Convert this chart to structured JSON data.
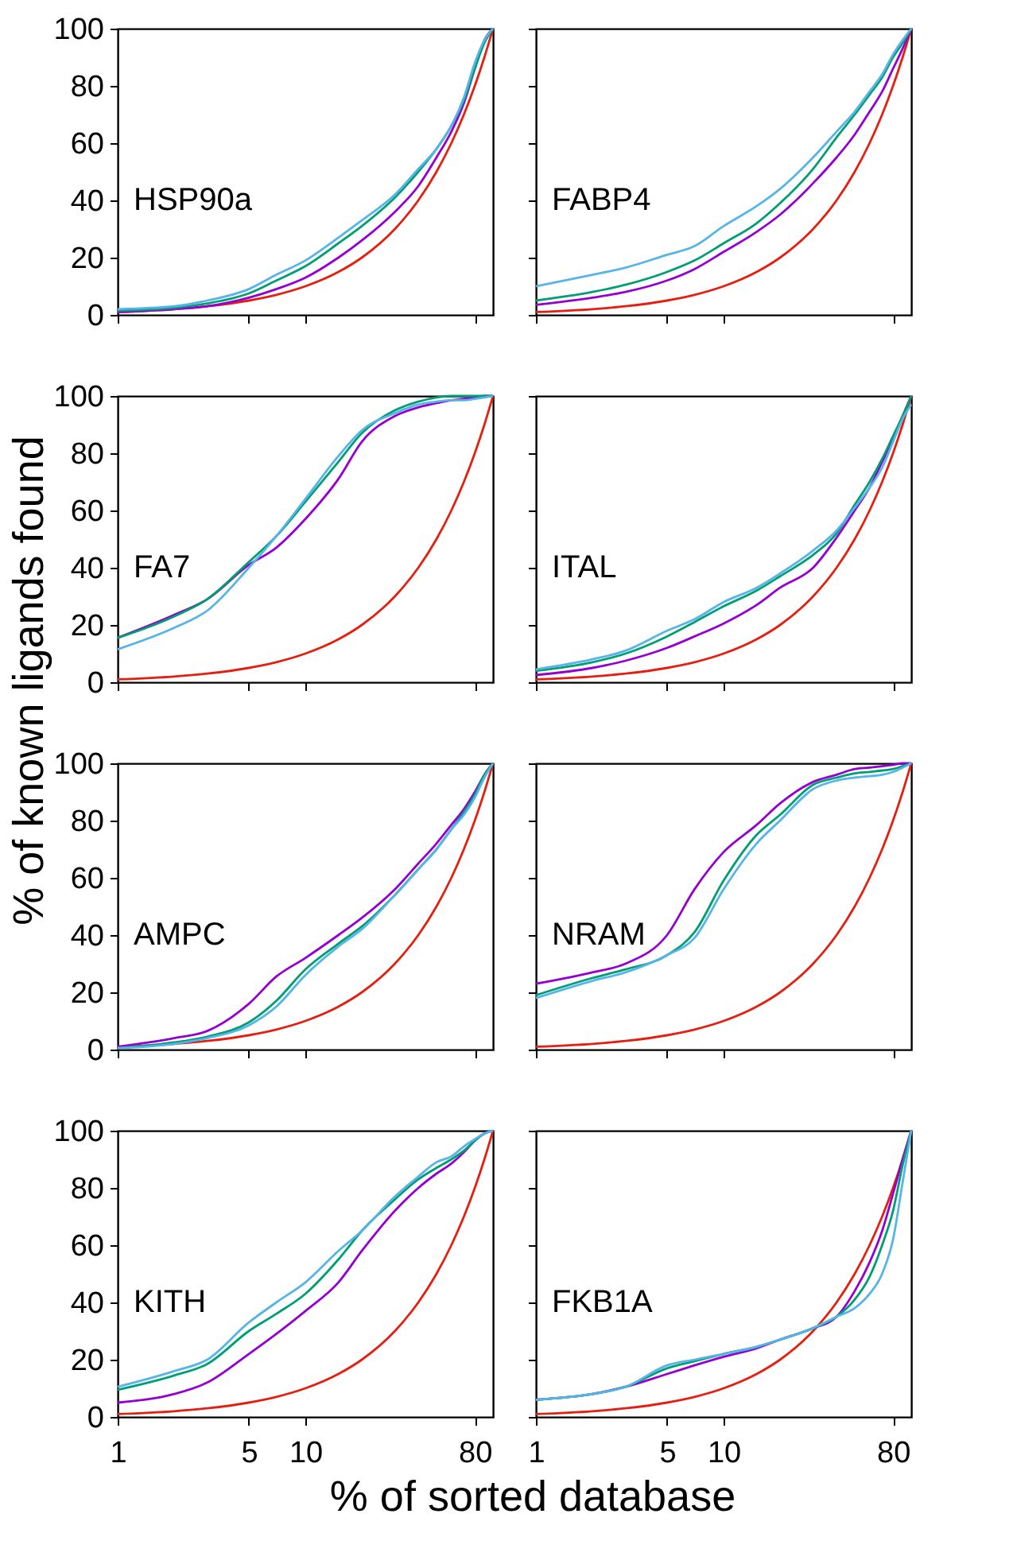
{
  "chart_data": [
    {
      "type": "line",
      "annotations": [
        "HSP90a"
      ],
      "ylabel": "% of known ligands found",
      "log": "x",
      "x": [
        1,
        2,
        3,
        5,
        7,
        10,
        15,
        20,
        30,
        40,
        50,
        60,
        70,
        80,
        90,
        100
      ],
      "xlim": [
        1,
        100
      ],
      "xticks": [
        1,
        5,
        10,
        80
      ],
      "ylim": [
        0,
        100
      ],
      "yticks": [
        0,
        20,
        40,
        60,
        80,
        100
      ],
      "tick_labels": "y",
      "grid": false,
      "series": [
        {
          "color": "#e51e10",
          "values": [
            1,
            2,
            3,
            5,
            7,
            10,
            15,
            20,
            30,
            40,
            50,
            60,
            70,
            80,
            90,
            100
          ]
        },
        {
          "color": "#9400d3",
          "values": [
            1,
            2,
            3,
            6,
            9,
            13,
            20,
            26,
            36,
            45,
            55,
            64,
            74,
            86,
            96,
            100
          ]
        },
        {
          "color": "#009e73",
          "values": [
            1.5,
            2.5,
            4,
            7.5,
            12,
            17,
            25,
            31,
            41,
            50,
            58,
            66,
            75,
            86,
            95,
            100
          ]
        },
        {
          "color": "#56b4e9",
          "values": [
            2,
            3,
            5,
            9,
            14,
            19,
            27,
            33,
            42,
            51,
            58,
            66,
            76,
            88,
            96,
            100
          ]
        }
      ]
    },
    {
      "type": "line",
      "annotations": [
        "FABP4"
      ],
      "log": "x",
      "x": [
        1,
        2,
        3,
        5,
        7,
        10,
        15,
        20,
        30,
        40,
        50,
        60,
        70,
        80,
        90,
        100
      ],
      "xlim": [
        1,
        100
      ],
      "xticks": [
        1,
        5,
        10,
        80
      ],
      "ylim": [
        0,
        100
      ],
      "yticks": [
        0,
        20,
        40,
        60,
        80,
        100
      ],
      "tick_labels": false,
      "grid": false,
      "series": [
        {
          "color": "#e51e10",
          "values": [
            1,
            2,
            3,
            5,
            7,
            10,
            15,
            20,
            30,
            40,
            50,
            60,
            70,
            80,
            90,
            100
          ]
        },
        {
          "color": "#9400d3",
          "values": [
            3.5,
            6,
            8,
            12,
            16,
            22,
            29,
            35,
            46,
            55,
            63,
            71,
            78,
            86,
            93,
            100
          ]
        },
        {
          "color": "#009e73",
          "values": [
            5,
            8,
            10.5,
            15,
            19,
            25,
            32,
            39,
            51,
            62,
            70,
            77,
            83,
            90,
            95,
            100
          ]
        },
        {
          "color": "#56b4e9",
          "values": [
            10,
            14,
            16.5,
            21,
            24,
            31,
            38,
            44,
            55,
            64,
            71,
            78,
            84,
            91,
            96,
            100
          ]
        }
      ]
    },
    {
      "type": "line",
      "annotations": [
        "FA7"
      ],
      "log": "x",
      "x": [
        1,
        2,
        3,
        5,
        7,
        10,
        15,
        20,
        30,
        40,
        50,
        60,
        70,
        80,
        90,
        100
      ],
      "xlim": [
        1,
        100
      ],
      "xticks": [
        1,
        5,
        10,
        80
      ],
      "ylim": [
        0,
        100
      ],
      "yticks": [
        0,
        20,
        40,
        60,
        80,
        100
      ],
      "tick_labels": "y",
      "grid": false,
      "series": [
        {
          "color": "#e51e10",
          "values": [
            1,
            2,
            3,
            5,
            7,
            10,
            15,
            20,
            30,
            40,
            50,
            60,
            70,
            80,
            90,
            100
          ]
        },
        {
          "color": "#9400d3",
          "values": [
            15.5,
            23.5,
            29,
            41,
            47,
            57,
            71,
            84,
            93,
            96,
            97.5,
            98.5,
            99,
            99.5,
            100,
            100
          ]
        },
        {
          "color": "#009e73",
          "values": [
            15.5,
            23,
            29,
            42,
            51,
            63,
            77,
            87,
            95,
            98,
            99.5,
            100,
            100,
            100,
            100,
            100
          ]
        },
        {
          "color": "#56b4e9",
          "values": [
            11.5,
            19,
            25,
            40,
            51,
            64,
            79,
            88,
            94,
            97,
            98,
            98.5,
            98.5,
            99,
            99.5,
            100
          ]
        }
      ]
    },
    {
      "type": "line",
      "annotations": [
        "ITAL"
      ],
      "log": "x",
      "x": [
        1,
        2,
        3,
        5,
        7,
        10,
        15,
        20,
        30,
        40,
        50,
        60,
        70,
        80,
        90,
        100
      ],
      "xlim": [
        1,
        100
      ],
      "xticks": [
        1,
        5,
        10,
        80
      ],
      "ylim": [
        0,
        100
      ],
      "yticks": [
        0,
        20,
        40,
        60,
        80,
        100
      ],
      "tick_labels": false,
      "grid": false,
      "series": [
        {
          "color": "#e51e10",
          "values": [
            1,
            2,
            3,
            5,
            7,
            10,
            15,
            20,
            30,
            40,
            50,
            60,
            70,
            80,
            90,
            100
          ]
        },
        {
          "color": "#9400d3",
          "values": [
            2.5,
            5,
            7.5,
            12,
            16,
            20.5,
            27,
            33,
            40,
            50.5,
            60,
            68,
            77,
            85,
            93,
            100
          ]
        },
        {
          "color": "#009e73",
          "values": [
            4,
            7,
            10,
            16,
            21,
            26.5,
            32,
            37,
            44.5,
            52,
            62,
            70,
            78,
            86,
            93,
            100
          ]
        },
        {
          "color": "#56b4e9",
          "values": [
            4.5,
            8,
            11,
            18,
            22,
            28,
            33,
            38,
            46,
            53,
            61,
            68,
            75,
            84,
            92,
            97
          ]
        }
      ]
    },
    {
      "type": "line",
      "annotations": [
        "AMPC"
      ],
      "log": "x",
      "x": [
        1,
        2,
        3,
        5,
        7,
        10,
        15,
        20,
        30,
        40,
        50,
        60,
        70,
        80,
        90,
        100
      ],
      "xlim": [
        1,
        100
      ],
      "xticks": [
        1,
        5,
        10,
        80
      ],
      "ylim": [
        0,
        100
      ],
      "yticks": [
        0,
        20,
        40,
        60,
        80,
        100
      ],
      "tick_labels": "y",
      "grid": false,
      "series": [
        {
          "color": "#e51e10",
          "values": [
            1,
            2,
            3,
            5,
            7,
            10,
            15,
            20,
            30,
            40,
            50,
            60,
            70,
            80,
            90,
            100
          ]
        },
        {
          "color": "#9400d3",
          "values": [
            1,
            4,
            6.5,
            16,
            25.5,
            32,
            40,
            46,
            56,
            65,
            72,
            78.5,
            84,
            90,
            96,
            100
          ]
        },
        {
          "color": "#009e73",
          "values": [
            0.5,
            2.5,
            4.5,
            9.5,
            17,
            28,
            37,
            43,
            54,
            63,
            70,
            77,
            83,
            89,
            96,
            100
          ]
        },
        {
          "color": "#56b4e9",
          "values": [
            0.5,
            2,
            4,
            8.5,
            15,
            26,
            36,
            42,
            54,
            63,
            70,
            77,
            82,
            88,
            95,
            100
          ]
        }
      ]
    },
    {
      "type": "line",
      "annotations": [
        "NRAM"
      ],
      "log": "x",
      "x": [
        1,
        2,
        3,
        5,
        7,
        10,
        15,
        20,
        30,
        40,
        50,
        60,
        70,
        80,
        90,
        100
      ],
      "xlim": [
        1,
        100
      ],
      "xticks": [
        1,
        5,
        10,
        80
      ],
      "ylim": [
        0,
        100
      ],
      "yticks": [
        0,
        20,
        40,
        60,
        80,
        100
      ],
      "tick_labels": false,
      "grid": false,
      "series": [
        {
          "color": "#e51e10",
          "values": [
            1,
            2,
            3,
            5,
            7,
            10,
            15,
            20,
            30,
            40,
            50,
            60,
            70,
            80,
            90,
            100
          ]
        },
        {
          "color": "#9400d3",
          "values": [
            23,
            27,
            30,
            40,
            56,
            69,
            78.5,
            86,
            93.5,
            96,
            98,
            98.5,
            99,
            99.5,
            100,
            100
          ]
        },
        {
          "color": "#009e73",
          "values": [
            19,
            25,
            28,
            33,
            41,
            59,
            75,
            82,
            92.5,
            95,
            96.5,
            97,
            97.5,
            98,
            99,
            100
          ]
        },
        {
          "color": "#56b4e9",
          "values": [
            18,
            24,
            27,
            33,
            39,
            56,
            72,
            80,
            91,
            94,
            95,
            95.5,
            96,
            97,
            98.5,
            100
          ]
        }
      ]
    },
    {
      "type": "line",
      "annotations": [
        "KITH"
      ],
      "xlabel": "% of sorted database",
      "log": "x",
      "x": [
        1,
        2,
        3,
        5,
        7,
        10,
        15,
        20,
        30,
        40,
        50,
        60,
        70,
        80,
        90,
        100
      ],
      "xlim": [
        1,
        100
      ],
      "xticks": [
        1,
        5,
        10,
        80
      ],
      "ylim": [
        0,
        100
      ],
      "yticks": [
        0,
        20,
        40,
        60,
        80,
        100
      ],
      "grid": false,
      "series": [
        {
          "color": "#e51e10",
          "values": [
            1,
            2,
            3,
            5,
            7,
            10,
            15,
            20,
            30,
            40,
            50,
            60,
            70,
            80,
            90,
            100
          ]
        },
        {
          "color": "#9400d3",
          "values": [
            5,
            8,
            12,
            22,
            29,
            37,
            47,
            58,
            72,
            80,
            85,
            88.5,
            92.5,
            96.5,
            99,
            100
          ]
        },
        {
          "color": "#009e73",
          "values": [
            9.5,
            14.5,
            18.5,
            30,
            36,
            43,
            55,
            65,
            76,
            83,
            87,
            90,
            93,
            96.5,
            99,
            100
          ]
        },
        {
          "color": "#56b4e9",
          "values": [
            10.5,
            16,
            20,
            33,
            40,
            47,
            58,
            65,
            77,
            84,
            89,
            91,
            94.5,
            97,
            99,
            100
          ]
        }
      ]
    },
    {
      "type": "line",
      "annotations": [
        "FKB1A"
      ],
      "log": "x",
      "x": [
        1,
        2,
        3,
        5,
        7,
        10,
        15,
        20,
        30,
        40,
        50,
        60,
        70,
        80,
        90,
        100
      ],
      "xlim": [
        1,
        100
      ],
      "xticks": [
        1,
        5,
        10,
        80
      ],
      "ylim": [
        0,
        100
      ],
      "yticks": [
        0,
        20,
        40,
        60,
        80,
        100
      ],
      "tick_labels": "x",
      "grid": false,
      "series": [
        {
          "color": "#e51e10",
          "values": [
            1,
            2,
            3,
            5,
            7,
            10,
            15,
            20,
            30,
            40,
            50,
            60,
            70,
            80,
            90,
            100
          ]
        },
        {
          "color": "#9400d3",
          "values": [
            6,
            8,
            10.5,
            15,
            18,
            21,
            24,
            27,
            31,
            35,
            44,
            54,
            65,
            78,
            90,
            100
          ]
        },
        {
          "color": "#009e73",
          "values": [
            6,
            8,
            10.5,
            17,
            19.5,
            22,
            24.5,
            27,
            31,
            35,
            41,
            49,
            60,
            72,
            88,
            100
          ]
        },
        {
          "color": "#56b4e9",
          "values": [
            6,
            8,
            10.5,
            18,
            20,
            22,
            24.5,
            27,
            31,
            35,
            38,
            43,
            50,
            62,
            82,
            100
          ]
        }
      ]
    }
  ]
}
